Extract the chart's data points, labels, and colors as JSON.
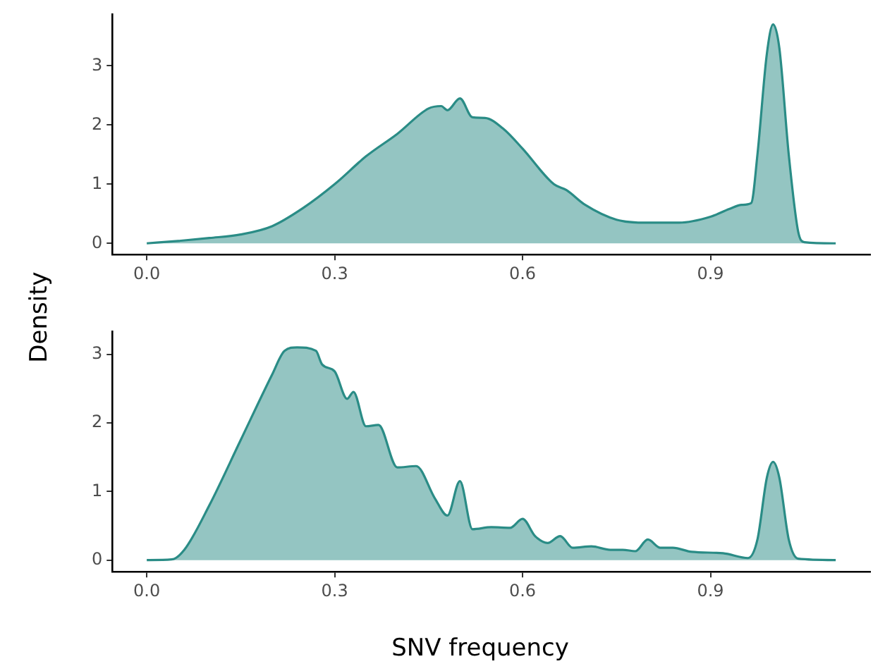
{
  "chart_data": [
    {
      "type": "area",
      "ylabel": "Density",
      "xlim": [
        -0.055,
        1.155
      ],
      "ylim": [
        -0.19,
        3.87
      ],
      "xticks": [
        {
          "value": 0,
          "label": "0.0"
        },
        0.3,
        0.6,
        0.9
      ],
      "yticks": [
        0,
        1,
        2,
        3
      ],
      "grid": false,
      "legend": false,
      "x": [
        0,
        0.05,
        0.1,
        0.15,
        0.2,
        0.25,
        0.3,
        0.35,
        0.4,
        0.45,
        0.47,
        0.48,
        0.5,
        0.52,
        0.54,
        0.57,
        0.6,
        0.65,
        0.67,
        0.7,
        0.75,
        0.8,
        0.85,
        0.9,
        0.93,
        0.95,
        0.965,
        0.975,
        0.99,
        1.0,
        1.01,
        1.025,
        1.04,
        1.05,
        1.1
      ],
      "series": [
        {
          "color": "#2a8c86",
          "values": [
            0,
            0.04,
            0.09,
            0.15,
            0.29,
            0.6,
            1.0,
            1.47,
            1.85,
            2.28,
            2.32,
            2.25,
            2.45,
            2.13,
            2.12,
            1.93,
            1.6,
            1.0,
            0.9,
            0.65,
            0.4,
            0.35,
            0.35,
            0.45,
            0.58,
            0.65,
            0.68,
            1.5,
            3.2,
            3.7,
            3.3,
            1.5,
            0.2,
            0.02,
            0
          ]
        }
      ]
    },
    {
      "type": "area",
      "xlabel": "SNV frequency",
      "xlim": [
        -0.055,
        1.155
      ],
      "ylim": [
        -0.17,
        3.33
      ],
      "xticks": [
        {
          "value": 0,
          "label": "0.0"
        },
        0.3,
        0.6,
        0.9
      ],
      "yticks": [
        0,
        1,
        2,
        3
      ],
      "grid": false,
      "legend": false,
      "x": [
        0,
        0.04,
        0.06,
        0.1,
        0.15,
        0.2,
        0.22,
        0.24,
        0.27,
        0.28,
        0.3,
        0.32,
        0.33,
        0.35,
        0.37,
        0.4,
        0.43,
        0.46,
        0.48,
        0.5,
        0.52,
        0.55,
        0.58,
        0.6,
        0.62,
        0.64,
        0.66,
        0.68,
        0.71,
        0.74,
        0.76,
        0.78,
        0.8,
        0.82,
        0.84,
        0.87,
        0.92,
        0.96,
        0.975,
        0.99,
        1.0,
        1.01,
        1.025,
        1.04,
        1.1
      ],
      "series": [
        {
          "color": "#2a8c86",
          "values": [
            0,
            0.01,
            0.15,
            0.8,
            1.75,
            2.7,
            3.05,
            3.1,
            3.05,
            2.85,
            2.75,
            2.35,
            2.45,
            1.95,
            1.97,
            1.35,
            1.37,
            0.9,
            0.65,
            1.15,
            0.45,
            0.48,
            0.47,
            0.6,
            0.35,
            0.25,
            0.35,
            0.18,
            0.2,
            0.15,
            0.15,
            0.13,
            0.3,
            0.18,
            0.18,
            0.12,
            0.1,
            0.03,
            0.3,
            1.2,
            1.43,
            1.2,
            0.3,
            0.02,
            0
          ]
        }
      ]
    }
  ]
}
